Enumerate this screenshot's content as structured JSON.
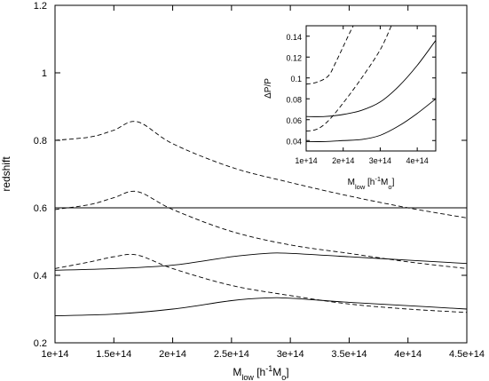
{
  "chart_data": [
    {
      "type": "line",
      "title": "",
      "xlabel": {
        "main": "M",
        "sub": "low",
        "unit_prefix": " [h",
        "unit_sup": "-1",
        "unit_main": "M",
        "unit_sub": "o",
        "unit_suffix": "]"
      },
      "ylabel": "redshift",
      "xlim": [
        100000000000000.0,
        450000000000000.0
      ],
      "ylim": [
        0.2,
        1.2
      ],
      "x_ticks": [
        100000000000000.0,
        150000000000000.0,
        200000000000000.0,
        250000000000000.0,
        300000000000000.0,
        350000000000000.0,
        400000000000000.0,
        450000000000000.0
      ],
      "x_tick_labels": [
        "1e+14",
        "1.5e+14",
        "2e+14",
        "2.5e+14",
        "3e+14",
        "3.5e+14",
        "4e+14",
        "4.5e+14"
      ],
      "y_ticks": [
        0.2,
        0.4,
        0.6,
        0.8,
        1.0,
        1.2
      ],
      "y_tick_labels": [
        "0.2",
        "0.4",
        "0.6",
        "0.8",
        "1",
        "1.2"
      ],
      "grid": false,
      "series": [
        {
          "style": "solid",
          "x": [
            100000000000000.0,
            450000000000000.0
          ],
          "y": [
            0.6,
            0.6
          ]
        },
        {
          "style": "dashed",
          "x": [
            100000000000000.0,
            130000000000000.0,
            150000000000000.0,
            170000000000000.0,
            200000000000000.0,
            250000000000000.0,
            300000000000000.0,
            350000000000000.0,
            400000000000000.0,
            450000000000000.0
          ],
          "y": [
            0.8,
            0.81,
            0.83,
            0.855,
            0.79,
            0.72,
            0.675,
            0.635,
            0.6,
            0.57
          ]
        },
        {
          "style": "dashed",
          "x": [
            100000000000000.0,
            130000000000000.0,
            150000000000000.0,
            170000000000000.0,
            200000000000000.0,
            250000000000000.0,
            300000000000000.0,
            350000000000000.0,
            400000000000000.0,
            450000000000000.0
          ],
          "y": [
            0.595,
            0.61,
            0.63,
            0.648,
            0.595,
            0.53,
            0.49,
            0.465,
            0.44,
            0.42
          ]
        },
        {
          "style": "dashed",
          "x": [
            100000000000000.0,
            130000000000000.0,
            150000000000000.0,
            170000000000000.0,
            200000000000000.0,
            250000000000000.0,
            300000000000000.0,
            350000000000000.0,
            400000000000000.0,
            450000000000000.0
          ],
          "y": [
            0.42,
            0.44,
            0.455,
            0.46,
            0.42,
            0.37,
            0.34,
            0.315,
            0.3,
            0.29
          ]
        },
        {
          "style": "solid",
          "x": [
            100000000000000.0,
            150000000000000.0,
            200000000000000.0,
            250000000000000.0,
            280000000000000.0,
            300000000000000.0,
            350000000000000.0,
            400000000000000.0,
            450000000000000.0
          ],
          "y": [
            0.415,
            0.42,
            0.43,
            0.455,
            0.465,
            0.465,
            0.455,
            0.445,
            0.435
          ]
        },
        {
          "style": "solid",
          "x": [
            100000000000000.0,
            150000000000000.0,
            200000000000000.0,
            250000000000000.0,
            280000000000000.0,
            300000000000000.0,
            350000000000000.0,
            400000000000000.0,
            450000000000000.0
          ],
          "y": [
            0.28,
            0.285,
            0.3,
            0.325,
            0.333,
            0.332,
            0.32,
            0.31,
            0.3
          ]
        }
      ]
    },
    {
      "type": "line",
      "title": "",
      "xlabel": {
        "main": "M",
        "sub": "low",
        "unit_prefix": " [h",
        "unit_sup": "-1",
        "unit_main": "M",
        "unit_sub": "o",
        "unit_suffix": "]"
      },
      "ylabel": "ΔP/P",
      "xlim": [
        100000000000000.0,
        450000000000000.0
      ],
      "ylim": [
        0.03,
        0.15
      ],
      "x_ticks": [
        100000000000000.0,
        200000000000000.0,
        300000000000000.0,
        400000000000000.0
      ],
      "x_tick_labels": [
        "1e+14",
        "2e+14",
        "3e+14",
        "4e+14"
      ],
      "y_ticks": [
        0.04,
        0.06,
        0.08,
        0.1,
        0.12,
        0.14
      ],
      "y_tick_labels": [
        "0.04",
        "0.06",
        "0.08",
        "0.1",
        "0.12",
        "0.14"
      ],
      "grid": false,
      "series": [
        {
          "style": "dashed",
          "x": [
            100000000000000.0,
            130000000000000.0,
            160000000000000.0,
            180000000000000.0,
            200000000000000.0,
            220000000000000.0,
            235000000000000.0
          ],
          "y": [
            0.094,
            0.096,
            0.102,
            0.115,
            0.13,
            0.145,
            0.155
          ]
        },
        {
          "style": "dashed",
          "x": [
            100000000000000.0,
            130000000000000.0,
            160000000000000.0,
            200000000000000.0,
            250000000000000.0,
            300000000000000.0,
            330000000000000.0
          ],
          "y": [
            0.049,
            0.051,
            0.059,
            0.076,
            0.1,
            0.127,
            0.15
          ]
        },
        {
          "style": "solid",
          "x": [
            100000000000000.0,
            150000000000000.0,
            200000000000000.0,
            250000000000000.0,
            300000000000000.0,
            350000000000000.0,
            400000000000000.0,
            450000000000000.0
          ],
          "y": [
            0.063,
            0.063,
            0.065,
            0.069,
            0.077,
            0.092,
            0.112,
            0.136
          ]
        },
        {
          "style": "solid",
          "x": [
            100000000000000.0,
            150000000000000.0,
            200000000000000.0,
            250000000000000.0,
            300000000000000.0,
            350000000000000.0,
            400000000000000.0,
            450000000000000.0
          ],
          "y": [
            0.039,
            0.039,
            0.04,
            0.041,
            0.045,
            0.054,
            0.066,
            0.08
          ]
        }
      ]
    }
  ]
}
